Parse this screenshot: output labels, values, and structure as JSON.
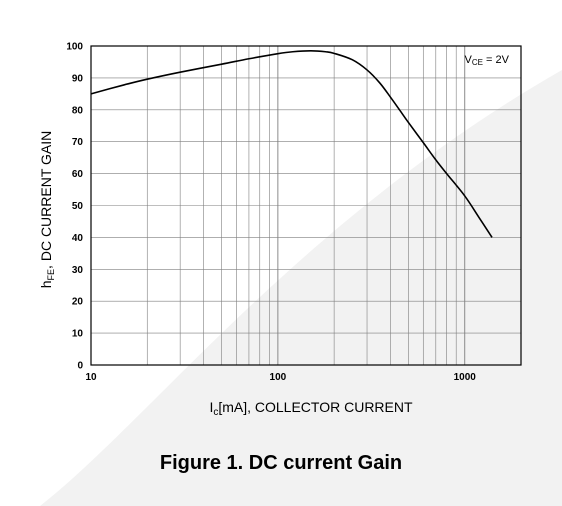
{
  "figure": {
    "caption": "Figure 1. DC current Gain"
  },
  "colors": {
    "grid": "#7f7f7f",
    "curve": "#000000",
    "background_shape": "#f2f2f2"
  },
  "chart_data": {
    "type": "line",
    "title": "",
    "xlabel": {
      "main": "I",
      "sub": "c",
      "rest": "[mA], COLLECTOR CURRENT"
    },
    "ylabel": {
      "main": "h",
      "sub": "FE",
      "rest": ", DC CURRENT GAIN"
    },
    "x_scale": "log",
    "xlim": [
      10,
      2000
    ],
    "ylim": [
      0,
      100
    ],
    "x_ticks": [
      10,
      100,
      1000
    ],
    "x_tick_labels": [
      "10",
      "100",
      "1000"
    ],
    "y_ticks": [
      0,
      10,
      20,
      30,
      40,
      50,
      60,
      70,
      80,
      90,
      100
    ],
    "y_tick_labels": [
      "0",
      "10",
      "20",
      "30",
      "40",
      "50",
      "60",
      "70",
      "80",
      "90",
      "100"
    ],
    "grid": true,
    "annotation": {
      "main": "V",
      "sub": "CE",
      "rest": " = 2V",
      "position": "top-right"
    },
    "series": [
      {
        "x": [
          10,
          15,
          20,
          30,
          50,
          70,
          100,
          120,
          150,
          180,
          200,
          250,
          300,
          350,
          400,
          450,
          500,
          600,
          700,
          800,
          1000,
          1200,
          1400
        ],
        "y": [
          85,
          87.8,
          89.6,
          91.8,
          94.3,
          96,
          97.6,
          98.2,
          98.5,
          98.2,
          97.7,
          95.7,
          92.5,
          88.5,
          84,
          79.8,
          76,
          69.7,
          64.3,
          60,
          53,
          46,
          40
        ]
      }
    ]
  }
}
